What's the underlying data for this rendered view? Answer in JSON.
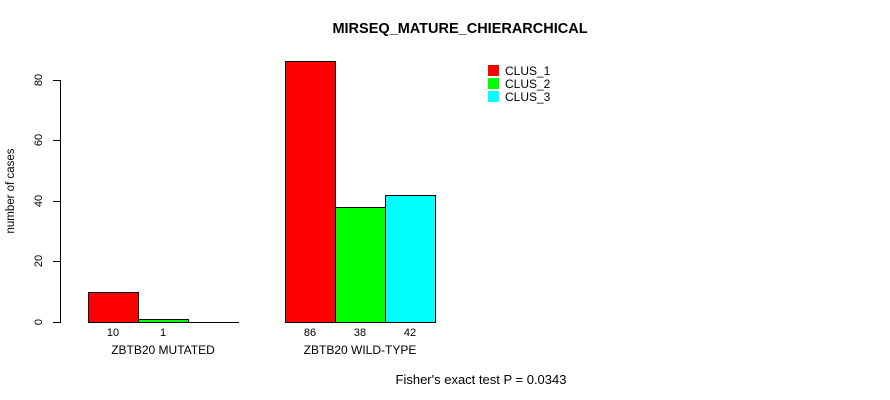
{
  "chart_data": {
    "type": "bar",
    "title": "MIRSEQ_MATURE_CHIERARCHICAL",
    "ylabel": "number of cases",
    "xlabel": "",
    "categories": [
      "ZBTB20 MUTATED",
      "ZBTB20 WILD-TYPE"
    ],
    "series": [
      {
        "name": "CLUS_1",
        "color": "#ff0000",
        "values": [
          10,
          86
        ]
      },
      {
        "name": "CLUS_2",
        "color": "#00ff00",
        "values": [
          1,
          38
        ]
      },
      {
        "name": "CLUS_3",
        "color": "#00ffff",
        "values": [
          0,
          42
        ]
      }
    ],
    "bar_value_labels": [
      [
        "10",
        "1",
        ""
      ],
      [
        "86",
        "38",
        "42"
      ]
    ],
    "yticks": [
      0,
      20,
      40,
      60,
      80
    ],
    "ylim": [
      0,
      88
    ],
    "grid": false,
    "legend_position": "top-right",
    "annotation": "Fisher's exact test P = 0.0343"
  }
}
